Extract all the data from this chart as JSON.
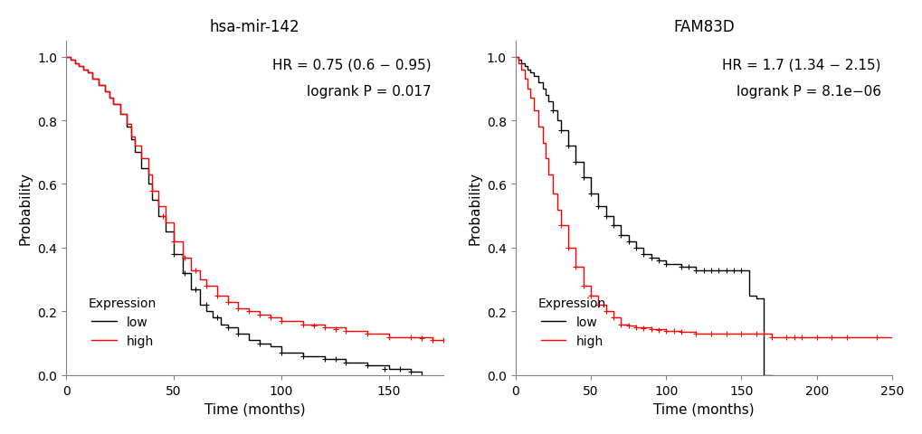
{
  "plot1": {
    "title": "hsa-mir-142",
    "hr_text": "HR = 0.75 (0.6 − 0.95)",
    "logrank_text": "logrank P = 0.017",
    "xlabel": "Time (months)",
    "ylabel": "Probability",
    "xlim": [
      0,
      175
    ],
    "ylim": [
      0,
      1.05
    ],
    "xticks": [
      0,
      50,
      100,
      150
    ],
    "yticks": [
      0.0,
      0.2,
      0.4,
      0.6,
      0.8,
      1.0
    ],
    "low_color": "#000000",
    "high_color": "#FF0000"
  },
  "plot2": {
    "title": "FAM83D",
    "hr_text": "HR = 1.7 (1.34 − 2.15)",
    "logrank_text": "logrank P = 8.1e−06",
    "xlabel": "Time (months)",
    "ylabel": "Probability",
    "xlim": [
      0,
      250
    ],
    "ylim": [
      0,
      1.05
    ],
    "xticks": [
      0,
      50,
      100,
      150,
      200,
      250
    ],
    "yticks": [
      0.0,
      0.2,
      0.4,
      0.6,
      0.8,
      1.0
    ],
    "low_color": "#000000",
    "high_color": "#FF0000"
  },
  "legend_title": "Expression",
  "legend_low": "low",
  "legend_high": "high",
  "background_color": "#ffffff",
  "font_size": 11
}
